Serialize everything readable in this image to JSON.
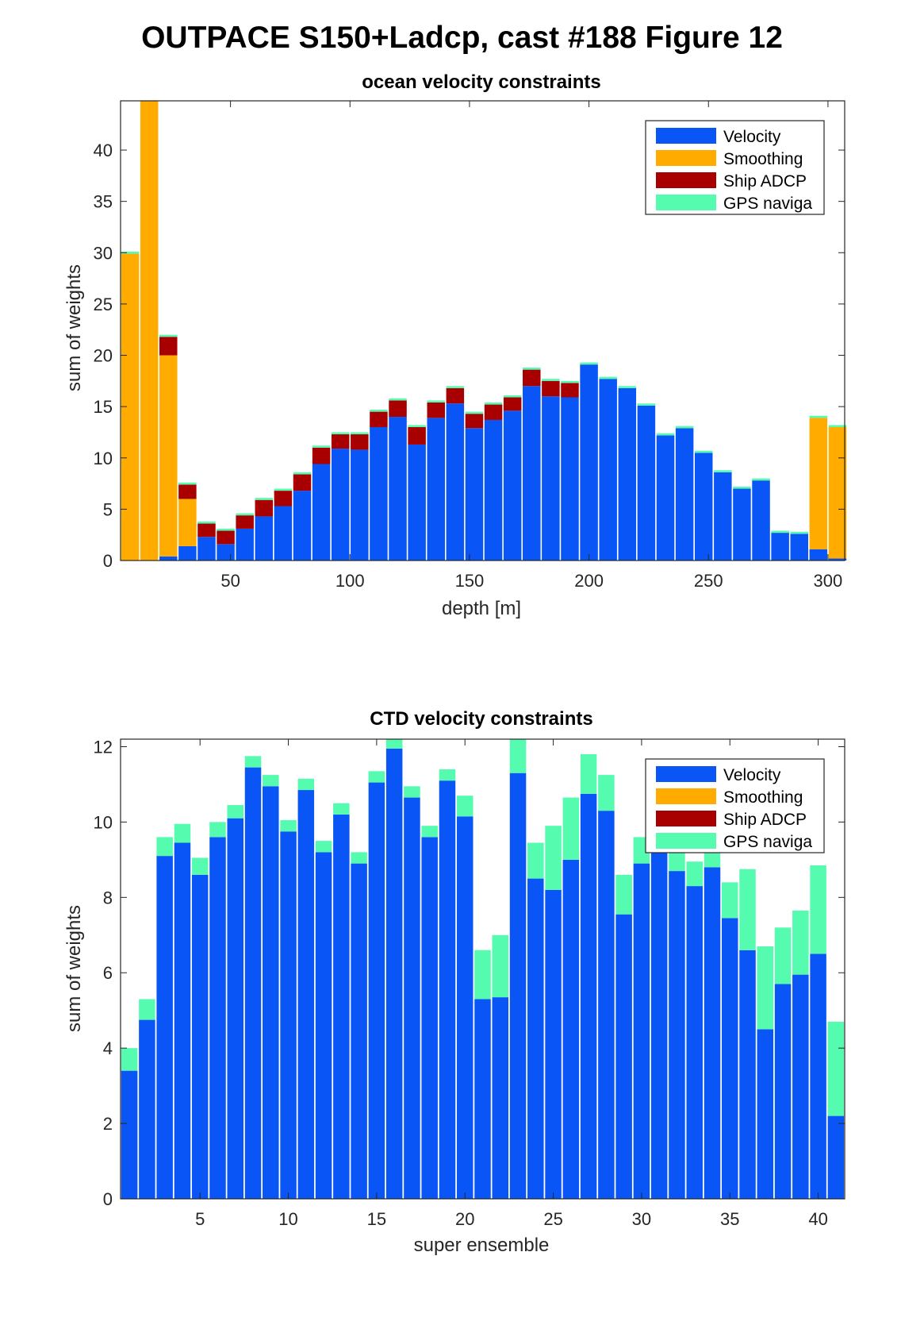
{
  "figure_title": "OUTPACE S150+Ladcp, cast #188  Figure 12",
  "colors": {
    "velocity": "#0a55f5",
    "smoothing": "#ffab00",
    "ship_adcp": "#a80000",
    "gps": "#55fbaf"
  },
  "chart_data": [
    {
      "type": "bar",
      "stacked": true,
      "title": "ocean velocity constraints",
      "xlabel": "depth [m]",
      "ylabel": "sum of weights",
      "x_ticks": [
        50,
        100,
        150,
        200,
        250,
        300
      ],
      "y_ticks": [
        0,
        5,
        10,
        15,
        20,
        25,
        30,
        35,
        40
      ],
      "xlim": [
        4,
        307
      ],
      "ylim": [
        0,
        44.8
      ],
      "legend_position": "top-right",
      "x": [
        8,
        16,
        24,
        32,
        40,
        48,
        56,
        64,
        72,
        80,
        88,
        96,
        104,
        112,
        120,
        128,
        136,
        144,
        152,
        160,
        168,
        176,
        184,
        192,
        200,
        208,
        216,
        224,
        232,
        240,
        248,
        256,
        264,
        272,
        280,
        288,
        296,
        304
      ],
      "series": [
        {
          "name": "Velocity",
          "color_key": "velocity",
          "values": [
            0,
            0,
            0.4,
            1.4,
            2.3,
            1.6,
            3.1,
            4.3,
            5.3,
            6.8,
            9.4,
            10.9,
            10.8,
            13.0,
            14.0,
            11.3,
            13.9,
            15.3,
            12.9,
            13.7,
            14.6,
            17.0,
            16.0,
            15.9,
            19.1,
            17.7,
            16.8,
            15.1,
            12.2,
            12.9,
            10.5,
            8.6,
            7.0,
            7.8,
            2.7,
            2.6,
            1.1,
            0.2
          ]
        },
        {
          "name": "Smoothing",
          "color_key": "smoothing",
          "values": [
            29.9,
            44.8,
            19.6,
            4.6,
            0,
            0,
            0,
            0,
            0,
            0,
            0,
            0,
            0,
            0,
            0,
            0,
            0,
            0,
            0,
            0,
            0,
            0,
            0,
            0,
            0,
            0,
            0,
            0,
            0,
            0,
            0,
            0,
            0,
            0,
            0,
            0,
            12.8,
            12.8
          ]
        },
        {
          "name": "Ship ADCP",
          "color_key": "ship_adcp",
          "values": [
            0,
            0,
            1.8,
            1.4,
            1.3,
            1.3,
            1.3,
            1.6,
            1.5,
            1.6,
            1.6,
            1.4,
            1.5,
            1.5,
            1.6,
            1.7,
            1.5,
            1.5,
            1.4,
            1.5,
            1.3,
            1.6,
            1.5,
            1.4,
            0,
            0,
            0,
            0,
            0,
            0,
            0,
            0,
            0,
            0,
            0,
            0,
            0,
            0
          ]
        },
        {
          "name": "GPS naviga",
          "color_key": "gps",
          "values": [
            0.2,
            0.2,
            0.2,
            0.2,
            0.2,
            0.2,
            0.2,
            0.2,
            0.2,
            0.2,
            0.2,
            0.2,
            0.2,
            0.2,
            0.2,
            0.2,
            0.2,
            0.2,
            0.2,
            0.2,
            0.2,
            0.2,
            0.2,
            0.2,
            0.2,
            0.2,
            0.2,
            0.2,
            0.2,
            0.2,
            0.2,
            0.2,
            0.2,
            0.2,
            0.2,
            0.2,
            0.2,
            0.2
          ]
        }
      ]
    },
    {
      "type": "bar",
      "stacked": true,
      "title": "CTD velocity constraints",
      "xlabel": "super ensemble",
      "ylabel": "sum of weights",
      "x_ticks": [
        5,
        10,
        15,
        20,
        25,
        30,
        35,
        40
      ],
      "y_ticks": [
        0,
        2,
        4,
        6,
        8,
        10,
        12
      ],
      "xlim": [
        0.5,
        41.5
      ],
      "ylim": [
        0,
        12.2
      ],
      "legend_position": "top-right",
      "x": [
        1,
        2,
        3,
        4,
        5,
        6,
        7,
        8,
        9,
        10,
        11,
        12,
        13,
        14,
        15,
        16,
        17,
        18,
        19,
        20,
        21,
        22,
        23,
        24,
        25,
        26,
        27,
        28,
        29,
        30,
        31,
        32,
        33,
        34,
        35,
        36,
        37,
        38,
        39,
        40,
        41
      ],
      "series": [
        {
          "name": "Velocity",
          "color_key": "velocity",
          "values": [
            3.4,
            4.75,
            9.1,
            9.45,
            8.6,
            9.6,
            10.1,
            11.45,
            10.95,
            9.75,
            10.85,
            9.2,
            10.2,
            8.9,
            11.05,
            11.95,
            10.65,
            9.6,
            11.1,
            10.15,
            5.3,
            5.35,
            11.3,
            8.5,
            8.2,
            9.0,
            10.75,
            10.3,
            7.55,
            8.9,
            9.2,
            8.7,
            8.3,
            8.8,
            7.45,
            6.6,
            4.5,
            5.7,
            5.95,
            6.5,
            2.2
          ]
        },
        {
          "name": "Smoothing",
          "color_key": "smoothing",
          "values": [
            0,
            0,
            0,
            0,
            0,
            0,
            0,
            0,
            0,
            0,
            0,
            0,
            0,
            0,
            0,
            0,
            0,
            0,
            0,
            0,
            0,
            0,
            0,
            0,
            0,
            0,
            0,
            0,
            0,
            0,
            0,
            0,
            0,
            0,
            0,
            0,
            0,
            0,
            0,
            0,
            0
          ]
        },
        {
          "name": "Ship ADCP",
          "color_key": "ship_adcp",
          "values": [
            0,
            0,
            0,
            0,
            0,
            0,
            0,
            0,
            0,
            0,
            0,
            0,
            0,
            0,
            0,
            0,
            0,
            0,
            0,
            0,
            0,
            0,
            0,
            0,
            0,
            0,
            0,
            0,
            0,
            0,
            0,
            0,
            0,
            0,
            0,
            0,
            0,
            0,
            0,
            0,
            0
          ]
        },
        {
          "name": "GPS naviga",
          "color_key": "gps",
          "values": [
            0.6,
            0.55,
            0.5,
            0.5,
            0.45,
            0.4,
            0.35,
            0.3,
            0.3,
            0.3,
            0.3,
            0.3,
            0.3,
            0.3,
            0.3,
            0.25,
            0.3,
            0.3,
            0.3,
            0.55,
            1.3,
            1.65,
            0.95,
            0.95,
            1.7,
            1.65,
            1.05,
            0.95,
            1.05,
            0.7,
            0.5,
            0.55,
            0.65,
            0.5,
            0.95,
            2.15,
            2.2,
            1.5,
            1.7,
            2.35,
            2.5
          ]
        }
      ]
    }
  ]
}
